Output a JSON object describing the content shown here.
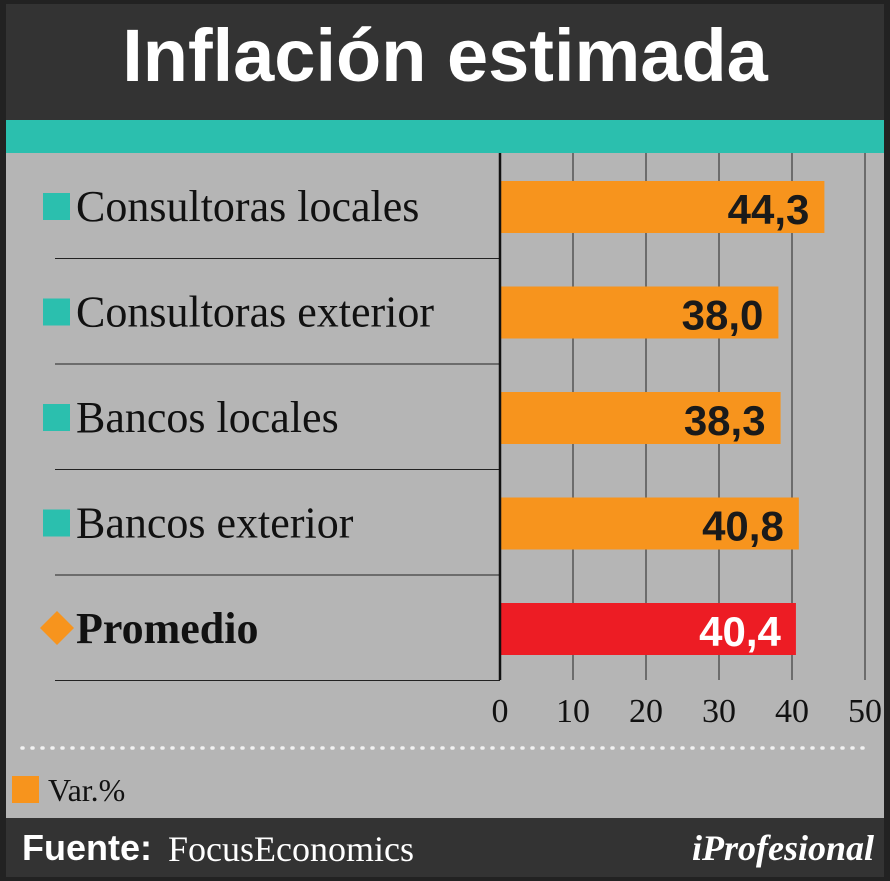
{
  "title": "Inflación estimada",
  "footer": {
    "source_label": "Fuente:",
    "source_value": "FocusEconomics",
    "brand": "iProfesional"
  },
  "legend": {
    "label": "Var.%",
    "color": "#f7941d"
  },
  "colors": {
    "header": "#333333",
    "accent": "#2bbfae",
    "panel": "#b5b5b5",
    "bar": "#f7941d",
    "highlight": "#ed1c24"
  },
  "chart_data": {
    "type": "bar",
    "orientation": "horizontal",
    "categories": [
      "Consultoras locales",
      "Consultoras exterior",
      "Bancos locales",
      "Bancos exterior",
      "Promedio"
    ],
    "values": [
      44.3,
      38.0,
      38.3,
      40.8,
      40.4
    ],
    "value_labels": [
      "44,3",
      "38,0",
      "38,3",
      "40,8",
      "40,4"
    ],
    "highlight_category": "Promedio",
    "xlim": [
      0,
      50
    ],
    "xticks": [
      0,
      10,
      20,
      30,
      40,
      50
    ],
    "xtick_labels": [
      "0",
      "10",
      "20",
      "30",
      "40",
      "50"
    ],
    "grid": true,
    "legend": [
      "Var.%"
    ]
  }
}
